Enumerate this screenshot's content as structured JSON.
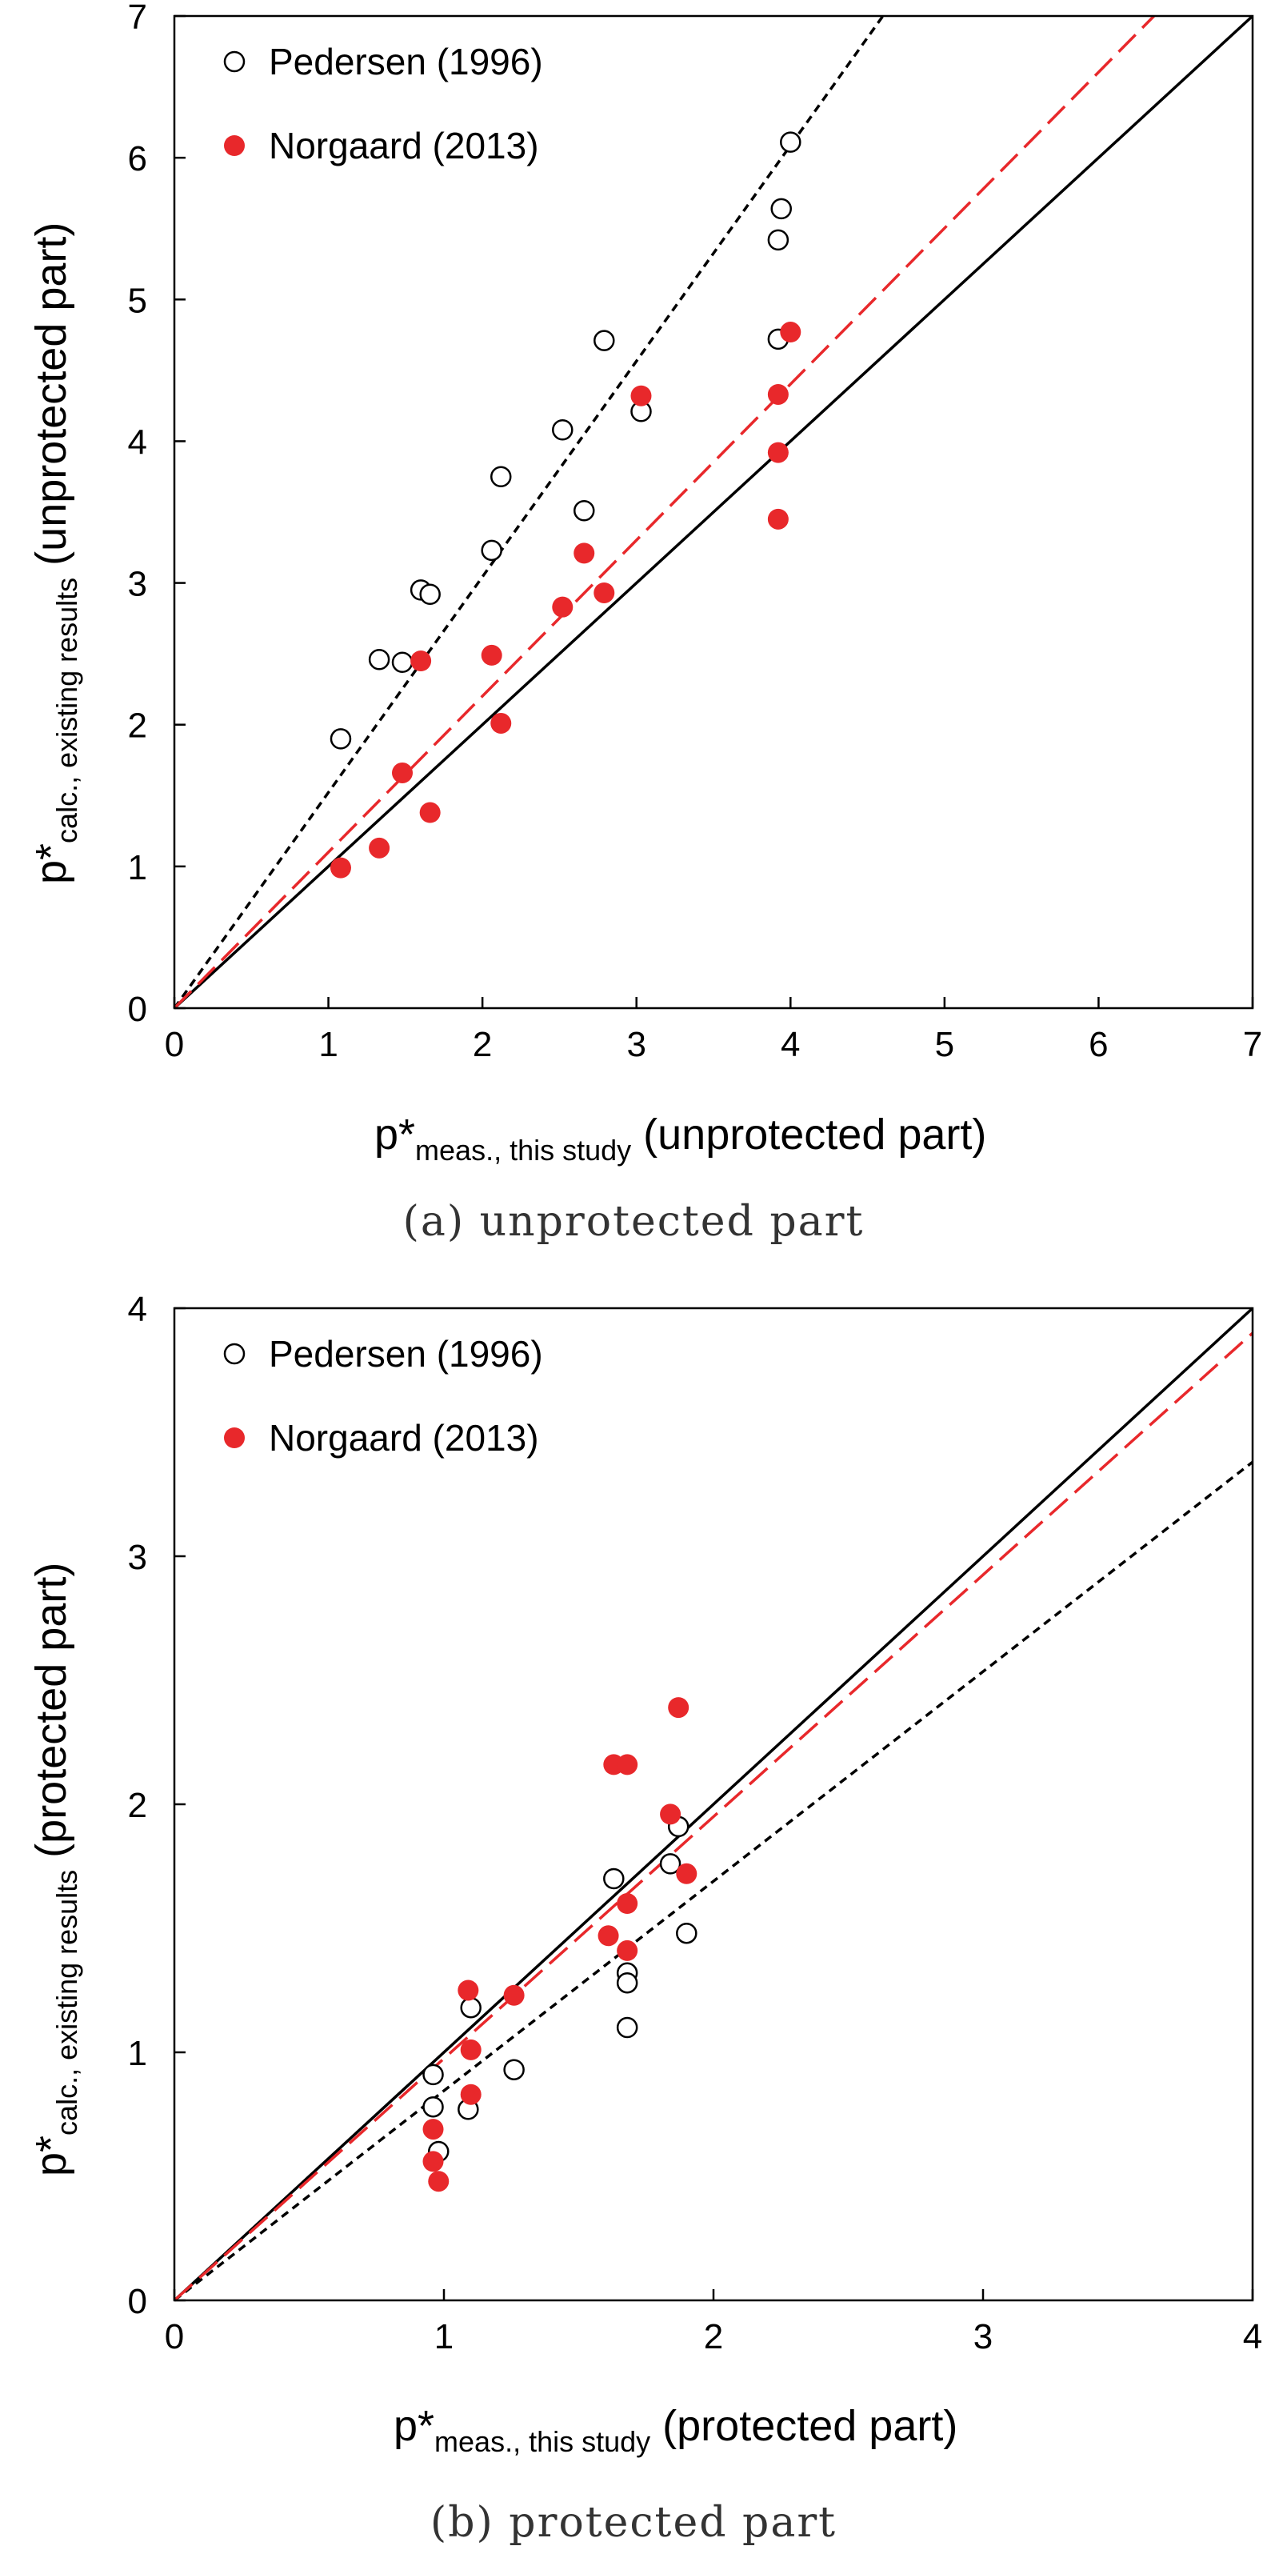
{
  "chart_data": [
    {
      "type": "scatter",
      "caption": "(a) unprotected part",
      "xlim": [
        0,
        7
      ],
      "ylim": [
        0,
        7
      ],
      "xticks": [
        "0",
        "1",
        "2",
        "3",
        "4",
        "5",
        "6",
        "7"
      ],
      "yticks": [
        "0",
        "1",
        "2",
        "3",
        "4",
        "5",
        "6",
        "7"
      ],
      "xlabel": {
        "main": "p*",
        "sub": "meas., this study",
        "rest": " (unprotected part)"
      },
      "ylabel": {
        "main": "p*",
        "sub": "calc., existing results",
        "rest": " (unprotected part)"
      },
      "legend": {
        "position": "top-left",
        "entries": [
          "Pedersen (1996)",
          "Norgaard (2013)"
        ]
      },
      "lines": [
        {
          "name": "equality",
          "style": "solid",
          "color": "#000000",
          "x": [
            0,
            7
          ],
          "y": [
            0,
            7
          ]
        },
        {
          "name": "Pedersen fit",
          "style": "dashed",
          "color": "#000000",
          "x": [
            0,
            4.6
          ],
          "y": [
            0,
            7
          ]
        },
        {
          "name": "Norgaard fit",
          "style": "long-dashed",
          "color": "#e8282b",
          "x": [
            0,
            6.36
          ],
          "y": [
            0,
            7
          ]
        }
      ],
      "series": [
        {
          "name": "Pedersen (1996)",
          "marker": "open-circle",
          "color": "#000000",
          "points": [
            [
              1.08,
              1.9
            ],
            [
              1.33,
              2.46
            ],
            [
              1.48,
              2.44
            ],
            [
              1.6,
              2.95
            ],
            [
              1.66,
              2.92
            ],
            [
              2.06,
              3.23
            ],
            [
              2.12,
              3.75
            ],
            [
              2.52,
              4.08
            ],
            [
              2.66,
              3.51
            ],
            [
              2.79,
              4.71
            ],
            [
              3.03,
              4.21
            ],
            [
              3.92,
              5.42
            ],
            [
              3.94,
              5.64
            ],
            [
              4.0,
              6.11
            ],
            [
              3.92,
              4.72
            ]
          ]
        },
        {
          "name": "Norgaard (2013)",
          "marker": "filled-circle",
          "color": "#e8282b",
          "points": [
            [
              1.08,
              0.99
            ],
            [
              1.33,
              1.13
            ],
            [
              1.48,
              1.66
            ],
            [
              1.6,
              2.45
            ],
            [
              1.66,
              1.38
            ],
            [
              2.06,
              2.49
            ],
            [
              2.12,
              2.01
            ],
            [
              2.52,
              2.83
            ],
            [
              2.66,
              3.21
            ],
            [
              2.79,
              2.93
            ],
            [
              3.03,
              4.32
            ],
            [
              3.92,
              4.33
            ],
            [
              3.92,
              3.92
            ],
            [
              4.0,
              4.77
            ],
            [
              3.92,
              3.45
            ]
          ]
        }
      ]
    },
    {
      "type": "scatter",
      "caption": "(b) protected part",
      "xlim": [
        0,
        4
      ],
      "ylim": [
        0,
        4
      ],
      "xticks": [
        "0",
        "1",
        "2",
        "3",
        "4"
      ],
      "yticks": [
        "0",
        "1",
        "2",
        "3",
        "4"
      ],
      "xlabel": {
        "main": "p*",
        "sub": "meas., this study",
        "rest": " (protected part)"
      },
      "ylabel": {
        "main": "p*",
        "sub": "calc., existing results",
        "rest": " (protected part)"
      },
      "legend": {
        "position": "top-left",
        "entries": [
          "Pedersen (1996)",
          "Norgaard (2013)"
        ]
      },
      "lines": [
        {
          "name": "equality",
          "style": "solid",
          "color": "#000000",
          "x": [
            0,
            4
          ],
          "y": [
            0,
            4
          ]
        },
        {
          "name": "Pedersen fit",
          "style": "dashed",
          "color": "#000000",
          "x": [
            0,
            4
          ],
          "y": [
            0,
            3.38
          ]
        },
        {
          "name": "Norgaard fit",
          "style": "long-dashed",
          "color": "#e8282b",
          "x": [
            0,
            4
          ],
          "y": [
            0,
            3.9
          ]
        }
      ],
      "series": [
        {
          "name": "Pedersen (1996)",
          "marker": "open-circle",
          "color": "#000000",
          "points": [
            [
              0.96,
              0.91
            ],
            [
              0.96,
              0.78
            ],
            [
              0.98,
              0.6
            ],
            [
              1.09,
              0.77
            ],
            [
              1.1,
              1.18
            ],
            [
              1.26,
              0.93
            ],
            [
              1.63,
              1.7
            ],
            [
              1.68,
              1.32
            ],
            [
              1.68,
              1.28
            ],
            [
              1.68,
              1.1
            ],
            [
              1.84,
              1.76
            ],
            [
              1.87,
              1.91
            ],
            [
              1.9,
              1.48
            ]
          ]
        },
        {
          "name": "Norgaard (2013)",
          "marker": "filled-circle",
          "color": "#e8282b",
          "points": [
            [
              0.96,
              0.69
            ],
            [
              0.96,
              0.56
            ],
            [
              0.98,
              0.48
            ],
            [
              1.09,
              1.25
            ],
            [
              1.1,
              1.01
            ],
            [
              1.1,
              0.83
            ],
            [
              1.26,
              1.23
            ],
            [
              1.61,
              1.47
            ],
            [
              1.63,
              2.16
            ],
            [
              1.68,
              2.16
            ],
            [
              1.68,
              1.6
            ],
            [
              1.68,
              1.41
            ],
            [
              1.84,
              1.96
            ],
            [
              1.87,
              2.39
            ],
            [
              1.9,
              1.72
            ]
          ]
        }
      ]
    }
  ]
}
